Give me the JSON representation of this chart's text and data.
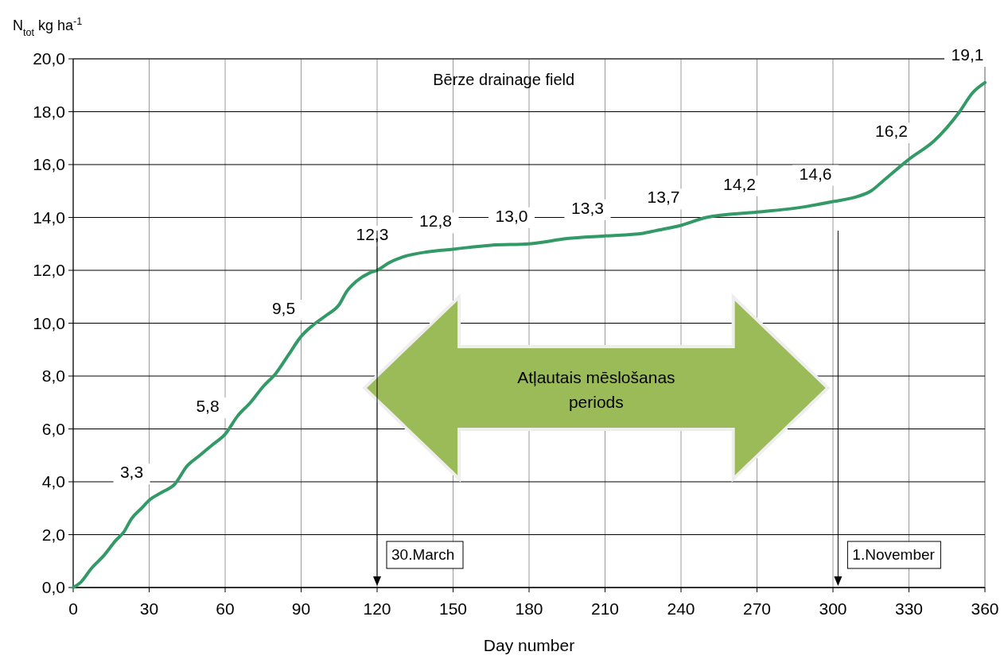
{
  "chart_data": {
    "type": "line",
    "title": "Bērze drainage field",
    "xlabel": "Day number",
    "ylabel": "N$_{tot}$  kg ha$^{-1}$",
    "xlim": [
      0,
      360
    ],
    "xticks": [
      0,
      30,
      60,
      90,
      120,
      150,
      180,
      210,
      240,
      270,
      300,
      330,
      360
    ],
    "ylim": [
      0,
      20
    ],
    "yticks": [
      {
        "value": 0,
        "label": "0,0"
      },
      {
        "value": 2,
        "label": "2,0"
      },
      {
        "value": 4,
        "label": "4,0"
      },
      {
        "value": 6,
        "label": "6,0"
      },
      {
        "value": 8,
        "label": "8,0"
      },
      {
        "value": 10,
        "label": "10,0"
      },
      {
        "value": 12,
        "label": "12,0"
      },
      {
        "value": 14,
        "label": "14,0"
      },
      {
        "value": 16,
        "label": "16,0"
      },
      {
        "value": 18,
        "label": "18,0"
      },
      {
        "value": 20,
        "label": "20,0"
      }
    ],
    "grid": true,
    "marker": "none",
    "line_style": "solid",
    "series": [
      {
        "color": "#339966",
        "x": [
          0,
          3,
          7,
          12,
          17,
          20,
          23,
          27,
          30,
          35,
          40,
          45,
          50,
          55,
          60,
          65,
          70,
          75,
          80,
          85,
          90,
          95,
          100,
          105,
          108,
          112,
          117,
          120,
          125,
          130,
          140,
          150,
          165,
          180,
          195,
          210,
          225,
          230,
          240,
          250,
          270,
          285,
          300,
          310,
          315,
          320,
          330,
          340,
          350,
          355,
          360
        ],
        "values": [
          0,
          0.2,
          0.7,
          1.2,
          1.8,
          2.1,
          2.6,
          3.0,
          3.3,
          3.6,
          3.9,
          4.6,
          5.0,
          5.4,
          5.8,
          6.5,
          7.0,
          7.6,
          8.1,
          8.8,
          9.5,
          9.95,
          10.3,
          10.7,
          11.2,
          11.6,
          11.9,
          12.0,
          12.3,
          12.5,
          12.7,
          12.8,
          12.95,
          13.0,
          13.2,
          13.3,
          13.4,
          13.5,
          13.7,
          14.0,
          14.2,
          14.35,
          14.6,
          14.8,
          15.0,
          15.4,
          16.2,
          16.9,
          18.0,
          18.7,
          19.1
        ]
      }
    ],
    "ref_lines": [
      {
        "axis": "x",
        "value": 120,
        "label": "30.March",
        "color": "#000000"
      },
      {
        "axis": "x",
        "value": 302,
        "label": "1.November",
        "color": "#000000"
      }
    ],
    "annotations": [
      {
        "text": "3,3",
        "x": 30,
        "y": 3.3
      },
      {
        "text": "5,8",
        "x": 60,
        "y": 5.8
      },
      {
        "text": "9,5",
        "x": 90,
        "y": 9.5
      },
      {
        "text": "12,3",
        "x": 125,
        "y": 12.3
      },
      {
        "text": "12,8",
        "x": 150,
        "y": 12.8
      },
      {
        "text": "13,0",
        "x": 180,
        "y": 13.0
      },
      {
        "text": "13,3",
        "x": 210,
        "y": 13.3
      },
      {
        "text": "13,7",
        "x": 240,
        "y": 13.7
      },
      {
        "text": "14,2",
        "x": 270,
        "y": 14.2
      },
      {
        "text": "14,6",
        "x": 300,
        "y": 14.6
      },
      {
        "text": "16,2",
        "x": 330,
        "y": 16.2
      },
      {
        "text": "19,1",
        "x": 360,
        "y": 19.1
      },
      "Atļautais mēslošanas periods"
    ]
  }
}
